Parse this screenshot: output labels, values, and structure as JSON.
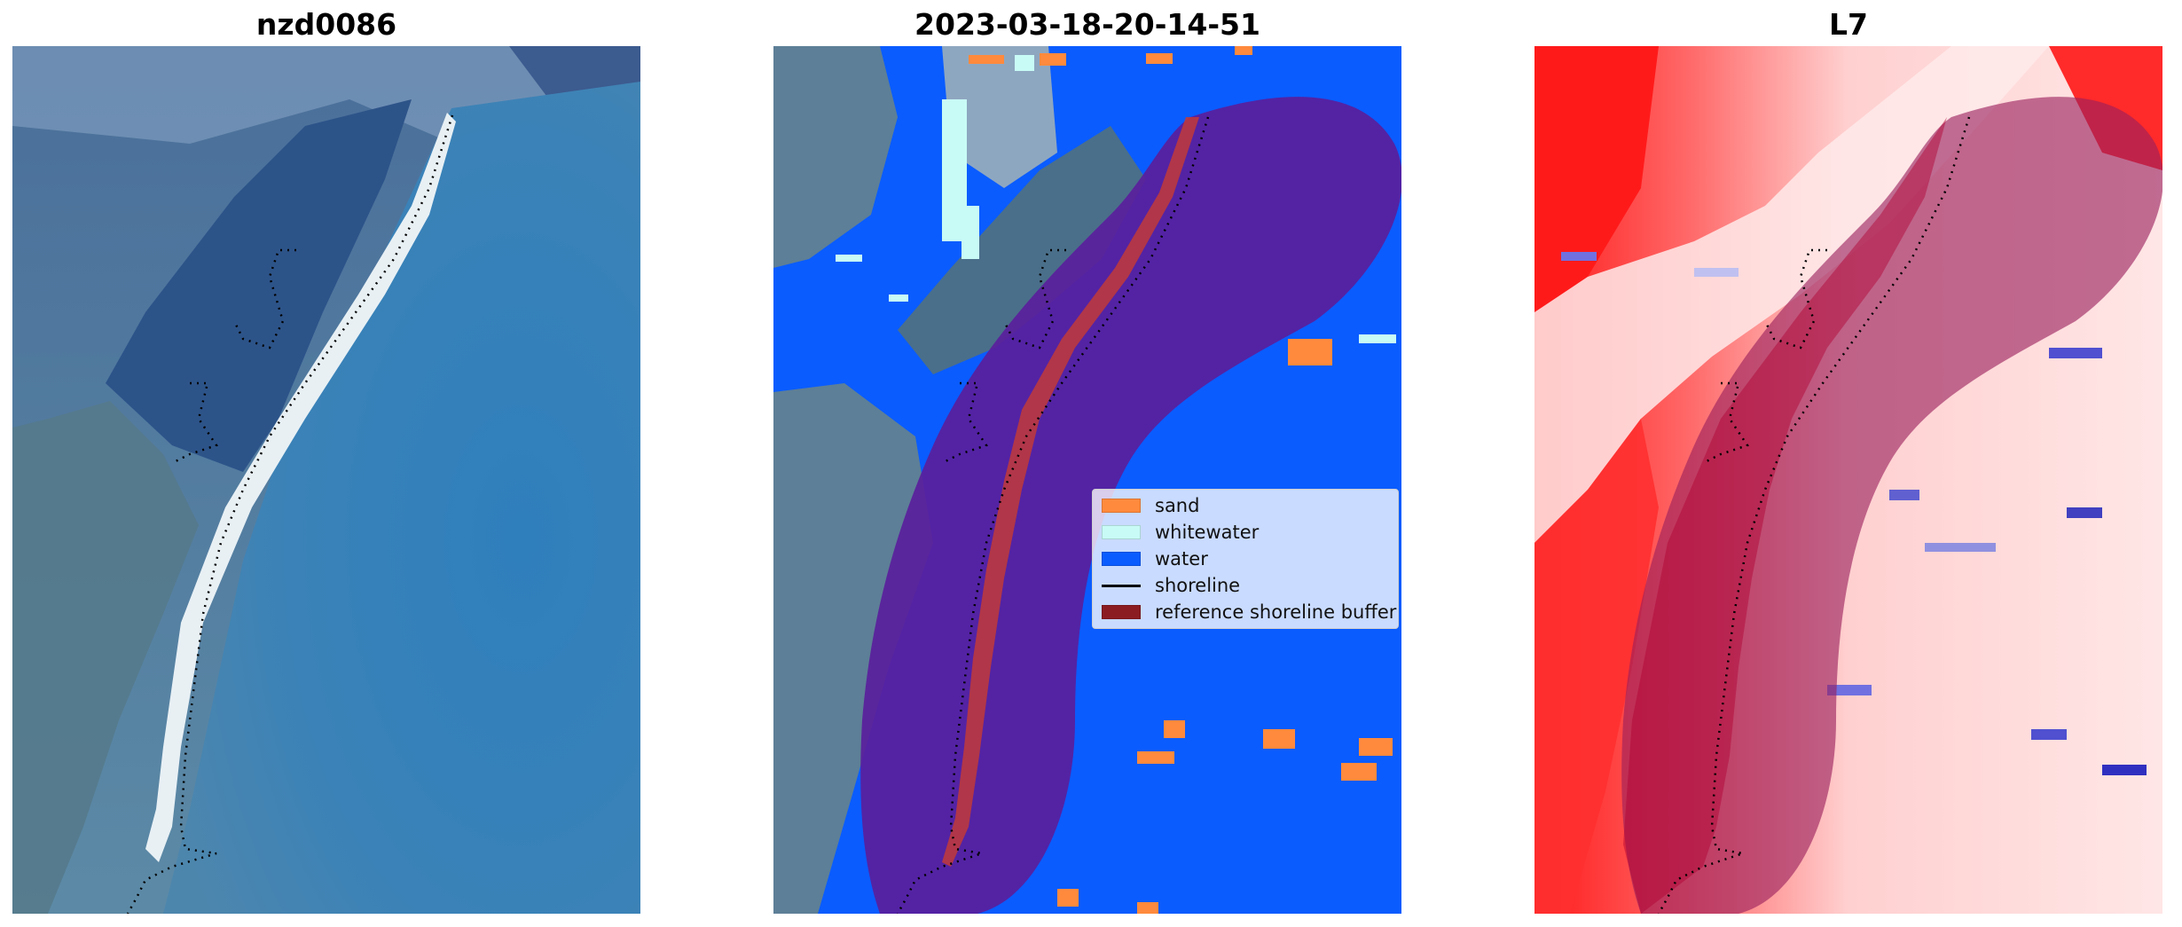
{
  "panels": [
    {
      "title": "nzd0086"
    },
    {
      "title": "2023-03-18-20-14-51"
    },
    {
      "title": "L7"
    }
  ],
  "legend": {
    "items": [
      {
        "label": "sand",
        "color": "#ff8a3d",
        "kind": "patch"
      },
      {
        "label": "whitewater",
        "color": "#c8fbf6",
        "kind": "patch"
      },
      {
        "label": "water",
        "color": "#0a5cff",
        "kind": "patch"
      },
      {
        "label": "shoreline",
        "color": "#000000",
        "kind": "line"
      },
      {
        "label": "reference shoreline buffer",
        "color": "#8b1c22",
        "kind": "patch"
      }
    ]
  },
  "colors": {
    "buffer_overlay": "#5a1e9c",
    "water_class": "#0a5cff",
    "sand_class": "#ff8a3d",
    "index_high": "#ff1010",
    "index_low": "#3030c0"
  }
}
